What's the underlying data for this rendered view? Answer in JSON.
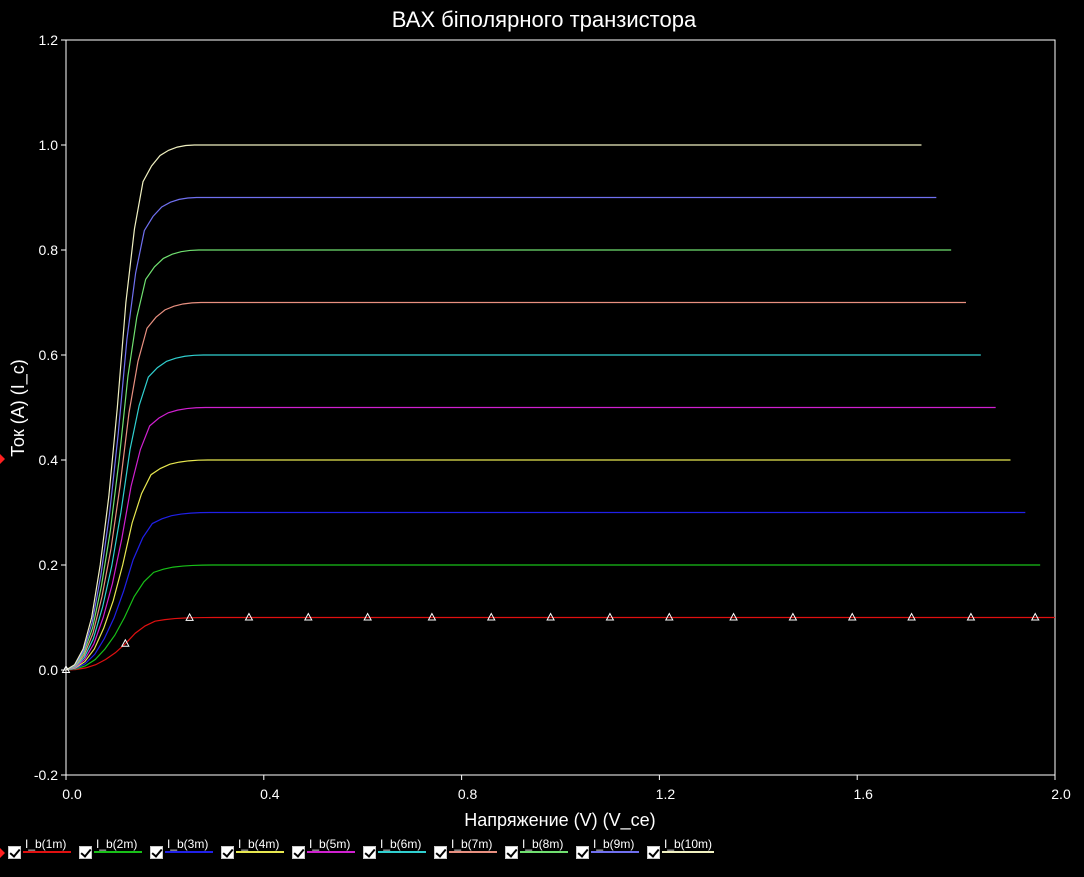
{
  "chart_data": {
    "type": "line",
    "title": "ВАХ біполярного транзистора",
    "xlabel": "Напряжение (V) (V_ce)",
    "ylabel": "Ток (A) (I_c)",
    "xlim": [
      0,
      2.0
    ],
    "ylim": [
      -0.2,
      1.2
    ],
    "x_ticks": [
      "0.0",
      "0.4",
      "0.8",
      "1.2",
      "1.6",
      "2.0"
    ],
    "y_ticks": [
      "-0.2",
      "0.0",
      "0.2",
      "0.4",
      "0.6",
      "0.8",
      "1.0",
      "1.2"
    ],
    "grid": false,
    "legend_position": "bottom",
    "x": [
      0,
      0.02,
      0.04,
      0.06,
      0.08,
      0.1,
      0.12,
      0.14,
      0.16,
      0.18,
      0.2,
      0.22,
      0.24,
      0.26,
      0.28,
      0.3,
      0.35,
      0.4,
      0.5,
      0.6,
      0.7,
      0.8,
      0.9,
      1.0,
      1.1,
      1.2,
      1.3,
      1.4,
      1.5,
      1.6,
      1.7,
      1.8,
      1.9,
      2.0
    ],
    "shape": [
      0,
      0.01,
      0.04,
      0.1,
      0.2,
      0.33,
      0.5,
      0.7,
      0.84,
      0.93,
      0.96,
      0.98,
      0.99,
      0.996,
      0.999,
      1.0,
      1.0,
      1.0,
      1.0,
      1.0,
      1.0,
      1.0,
      1.0,
      1.0,
      1.0,
      1.0,
      1.0,
      1.0,
      1.0,
      1.0,
      1.0,
      1.0,
      1.0,
      1.0
    ],
    "series": [
      {
        "name": "I_b(1m)",
        "saturation": 0.1,
        "color": "#e01010"
      },
      {
        "name": "I_b(2m)",
        "saturation": 0.2,
        "color": "#18c018"
      },
      {
        "name": "I_b(3m)",
        "saturation": 0.3,
        "color": "#2020e8"
      },
      {
        "name": "I_b(4m)",
        "saturation": 0.4,
        "color": "#e8e850"
      },
      {
        "name": "I_b(5m)",
        "saturation": 0.5,
        "color": "#d020d0"
      },
      {
        "name": "I_b(6m)",
        "saturation": 0.6,
        "color": "#30d0d0"
      },
      {
        "name": "I_b(7m)",
        "saturation": 0.7,
        "color": "#e89080"
      },
      {
        "name": "I_b(8m)",
        "saturation": 0.8,
        "color": "#70e070"
      },
      {
        "name": "I_b(9m)",
        "saturation": 0.9,
        "color": "#7070f0"
      },
      {
        "name": "I_b(10m)",
        "saturation": 1.0,
        "color": "#f0f0c0"
      }
    ],
    "markers": {
      "series_index": 0,
      "x": [
        0.0,
        0.12,
        0.25,
        0.37,
        0.49,
        0.61,
        0.74,
        0.86,
        0.98,
        1.1,
        1.22,
        1.35,
        1.47,
        1.59,
        1.71,
        1.83,
        1.96
      ]
    }
  },
  "colors": {
    "background": "#000000",
    "axis": "#ffffff",
    "text": "#ffffff"
  }
}
